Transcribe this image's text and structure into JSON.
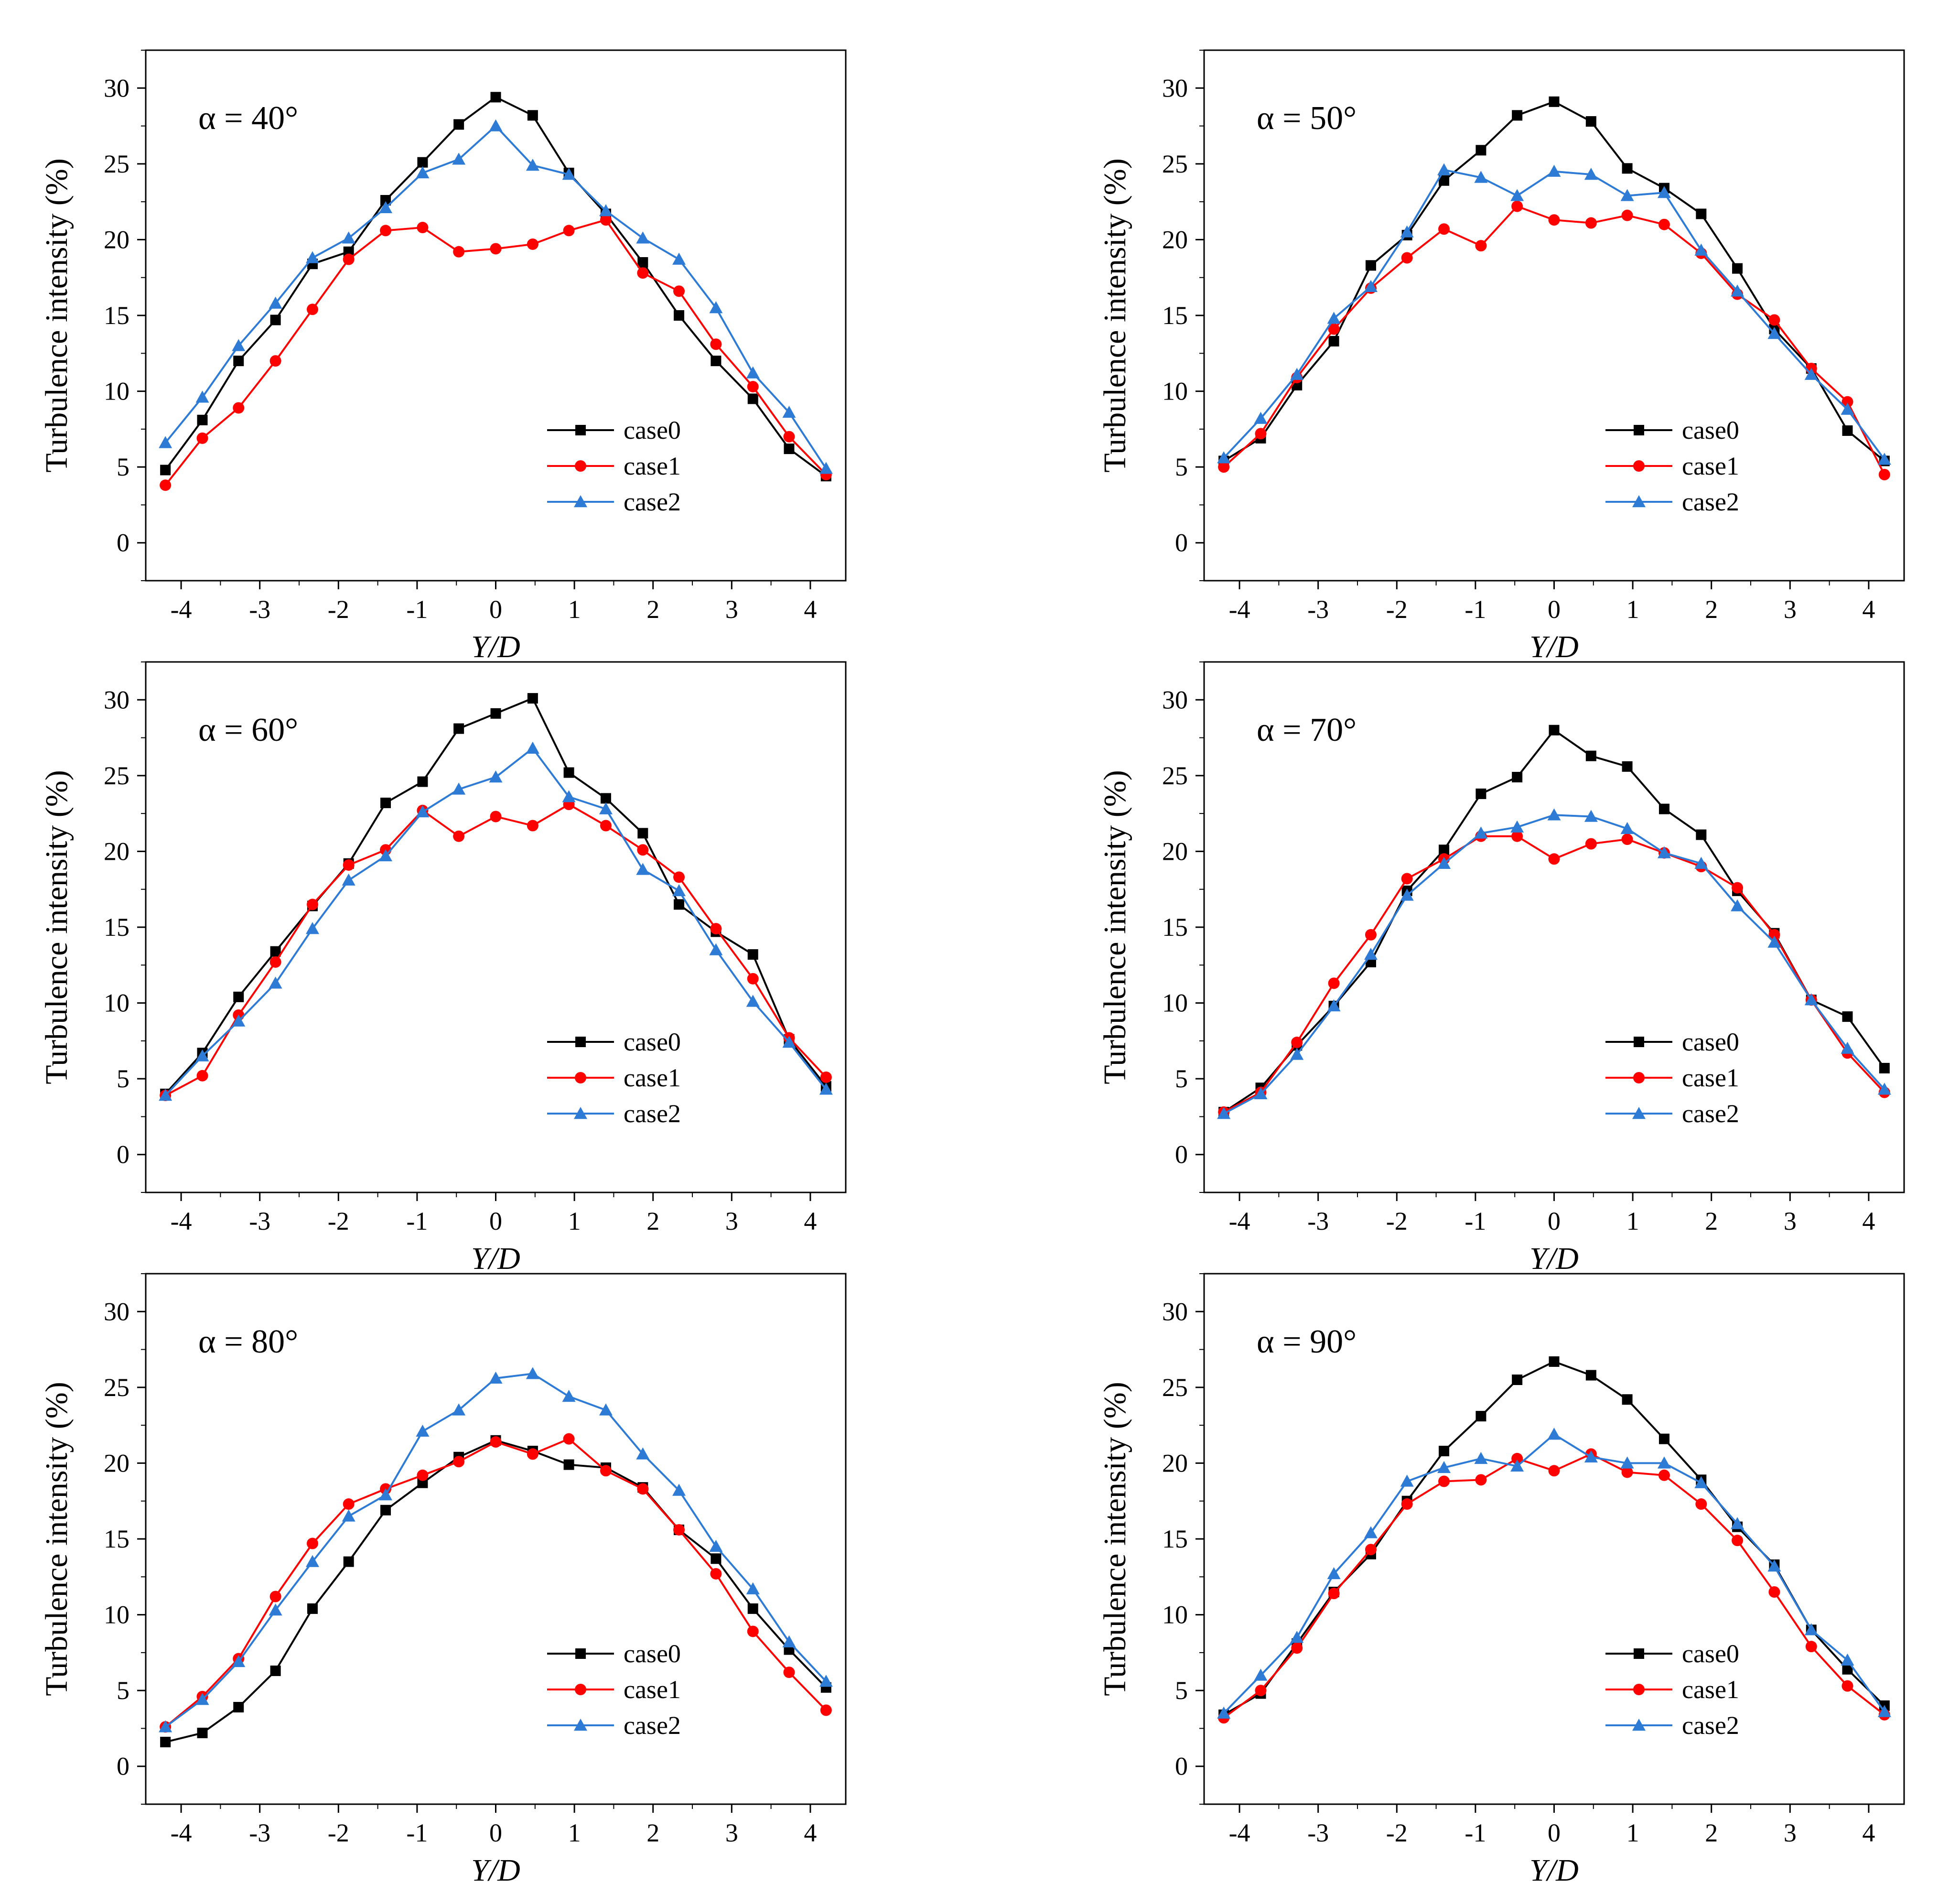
{
  "figure": {
    "ylabel": "Turbulence intensity (%)",
    "xlabel": "Y/D",
    "x_ticks": [
      "-4",
      "-3",
      "-2",
      "-1",
      "0",
      "1",
      "2",
      "3",
      "4"
    ],
    "y_ticks": [
      "0",
      "5",
      "10",
      "15",
      "20",
      "25",
      "30"
    ],
    "legend": [
      "case0",
      "case1",
      "case2"
    ],
    "colors": {
      "case0": "#000000",
      "case1": "#ff0000",
      "case2": "#2e7bd6"
    },
    "markers": {
      "case0": "square",
      "case1": "circle",
      "case2": "triangle"
    }
  },
  "chart_data": [
    {
      "type": "line",
      "title": "α = 40°",
      "xlabel": "Y/D",
      "ylabel": "Turbulence intensity (%)",
      "xlim": [
        -4.45,
        4.45
      ],
      "ylim": [
        -2.5,
        32.5
      ],
      "x": [
        -4.2,
        -3.73,
        -3.27,
        -2.8,
        -2.33,
        -1.87,
        -1.4,
        -0.93,
        -0.47,
        0,
        0.47,
        0.93,
        1.4,
        1.87,
        2.33,
        2.8,
        3.27,
        3.73,
        4.2
      ],
      "series": [
        {
          "name": "case0",
          "values": [
            4.8,
            8.1,
            12.0,
            14.7,
            18.4,
            19.2,
            22.6,
            25.1,
            27.6,
            29.4,
            28.2,
            24.4,
            21.7,
            18.5,
            15.0,
            12.0,
            9.5,
            6.2,
            4.4
          ]
        },
        {
          "name": "case1",
          "values": [
            3.8,
            6.9,
            8.9,
            12.0,
            15.4,
            18.7,
            20.6,
            20.8,
            19.2,
            19.4,
            19.7,
            20.6,
            21.3,
            17.8,
            16.6,
            13.1,
            10.3,
            7.0,
            4.5
          ]
        },
        {
          "name": "case2",
          "values": [
            6.6,
            9.6,
            13.0,
            15.8,
            18.8,
            20.1,
            22.1,
            24.4,
            25.3,
            27.5,
            24.9,
            24.3,
            21.9,
            20.1,
            18.7,
            15.5,
            11.2,
            8.6,
            4.9
          ]
        }
      ]
    },
    {
      "type": "line",
      "title": "α = 50°",
      "xlabel": "Y/D",
      "ylabel": "Turbulence intensity (%)",
      "xlim": [
        -4.45,
        4.45
      ],
      "ylim": [
        -2.5,
        32.5
      ],
      "x": [
        -4.2,
        -3.73,
        -3.27,
        -2.8,
        -2.33,
        -1.87,
        -1.4,
        -0.93,
        -0.47,
        0,
        0.47,
        0.93,
        1.4,
        1.87,
        2.33,
        2.8,
        3.27,
        3.73,
        4.2
      ],
      "series": [
        {
          "name": "case0",
          "values": [
            5.4,
            6.9,
            10.4,
            13.3,
            18.3,
            20.3,
            23.9,
            25.9,
            28.2,
            29.1,
            27.8,
            24.7,
            23.4,
            21.7,
            18.1,
            14.1,
            11.5,
            7.4,
            5.4
          ]
        },
        {
          "name": "case1",
          "values": [
            5.0,
            7.2,
            10.9,
            14.1,
            16.8,
            18.8,
            20.7,
            19.6,
            22.2,
            21.3,
            21.1,
            21.6,
            21.0,
            19.1,
            16.4,
            14.7,
            11.5,
            9.3,
            4.5
          ]
        },
        {
          "name": "case2",
          "values": [
            5.6,
            8.2,
            11.1,
            14.8,
            16.9,
            20.5,
            24.6,
            24.1,
            22.9,
            24.5,
            24.3,
            22.9,
            23.1,
            19.3,
            16.6,
            13.8,
            11.1,
            8.8,
            5.5
          ]
        }
      ]
    },
    {
      "type": "line",
      "title": "α = 60°",
      "xlabel": "Y/D",
      "ylabel": "Turbulence intensity (%)",
      "xlim": [
        -4.45,
        4.45
      ],
      "ylim": [
        -2.5,
        32.5
      ],
      "x": [
        -4.2,
        -3.73,
        -3.27,
        -2.8,
        -2.33,
        -1.87,
        -1.4,
        -0.93,
        -0.47,
        0,
        0.47,
        0.93,
        1.4,
        1.87,
        2.33,
        2.8,
        3.27,
        3.73,
        4.2
      ],
      "series": [
        {
          "name": "case0",
          "values": [
            4.0,
            6.7,
            10.4,
            13.4,
            16.4,
            19.2,
            23.2,
            24.6,
            28.1,
            29.1,
            30.1,
            25.2,
            23.5,
            21.2,
            16.5,
            14.7,
            13.2,
            7.6,
            4.5
          ]
        },
        {
          "name": "case1",
          "values": [
            3.9,
            5.2,
            9.2,
            12.7,
            16.5,
            19.1,
            20.1,
            22.7,
            21.0,
            22.3,
            21.7,
            23.1,
            21.7,
            20.1,
            18.3,
            14.9,
            11.6,
            7.7,
            5.1
          ]
        },
        {
          "name": "case2",
          "values": [
            3.9,
            6.5,
            8.8,
            11.3,
            14.9,
            18.1,
            19.7,
            22.6,
            24.1,
            24.9,
            26.8,
            23.6,
            22.8,
            18.8,
            17.4,
            13.5,
            10.1,
            7.4,
            4.3
          ]
        }
      ]
    },
    {
      "type": "line",
      "title": "α = 70°",
      "xlabel": "Y/D",
      "ylabel": "Turbulence intensity (%)",
      "xlim": [
        -4.45,
        4.45
      ],
      "ylim": [
        -2.5,
        32.5
      ],
      "x": [
        -4.2,
        -3.73,
        -3.27,
        -2.8,
        -2.33,
        -1.87,
        -1.4,
        -0.93,
        -0.47,
        0,
        0.47,
        0.93,
        1.4,
        1.87,
        2.33,
        2.8,
        3.27,
        3.73,
        4.2
      ],
      "series": [
        {
          "name": "case0",
          "values": [
            2.8,
            4.4,
            7.2,
            9.8,
            12.7,
            17.4,
            20.1,
            23.8,
            24.9,
            28.0,
            26.3,
            25.6,
            22.8,
            21.1,
            17.4,
            14.6,
            10.2,
            9.1,
            5.7
          ]
        },
        {
          "name": "case1",
          "values": [
            2.8,
            4.1,
            7.4,
            11.3,
            14.5,
            18.2,
            19.5,
            21.0,
            21.0,
            19.5,
            20.5,
            20.8,
            19.9,
            19.0,
            17.6,
            14.5,
            10.2,
            6.7,
            4.1
          ]
        },
        {
          "name": "case2",
          "values": [
            2.7,
            4.0,
            6.6,
            9.8,
            13.2,
            17.1,
            19.2,
            21.2,
            21.6,
            22.4,
            22.3,
            21.5,
            19.9,
            19.2,
            16.4,
            14.0,
            10.2,
            7.0,
            4.3
          ]
        }
      ]
    },
    {
      "type": "line",
      "title": "α = 80°",
      "xlabel": "Y/D",
      "ylabel": "Turbulence intensity (%)",
      "xlim": [
        -4.45,
        4.45
      ],
      "ylim": [
        -2.5,
        32.5
      ],
      "x": [
        -4.2,
        -3.73,
        -3.27,
        -2.8,
        -2.33,
        -1.87,
        -1.4,
        -0.93,
        -0.47,
        0,
        0.47,
        0.93,
        1.4,
        1.87,
        2.33,
        2.8,
        3.27,
        3.73,
        4.2
      ],
      "series": [
        {
          "name": "case0",
          "values": [
            1.6,
            2.2,
            3.9,
            6.3,
            10.4,
            13.5,
            16.9,
            18.7,
            20.4,
            21.5,
            20.8,
            19.9,
            19.7,
            18.4,
            15.6,
            13.7,
            10.4,
            7.7,
            5.2
          ]
        },
        {
          "name": "case1",
          "values": [
            2.6,
            4.6,
            7.1,
            11.2,
            14.7,
            17.3,
            18.3,
            19.2,
            20.1,
            21.4,
            20.6,
            21.6,
            19.5,
            18.3,
            15.6,
            12.7,
            8.9,
            6.2,
            3.7
          ]
        },
        {
          "name": "case2",
          "values": [
            2.6,
            4.4,
            6.9,
            10.3,
            13.5,
            16.5,
            17.9,
            22.1,
            23.5,
            25.6,
            25.9,
            24.4,
            23.5,
            20.6,
            18.2,
            14.5,
            11.7,
            8.2,
            5.6
          ]
        }
      ]
    },
    {
      "type": "line",
      "title": "α = 90°",
      "xlabel": "Y/D",
      "ylabel": "Turbulence intensity (%)",
      "xlim": [
        -4.45,
        4.45
      ],
      "ylim": [
        -2.5,
        32.5
      ],
      "x": [
        -4.2,
        -3.73,
        -3.27,
        -2.8,
        -2.33,
        -1.87,
        -1.4,
        -0.93,
        -0.47,
        0,
        0.47,
        0.93,
        1.4,
        1.87,
        2.33,
        2.8,
        3.27,
        3.73,
        4.2
      ],
      "series": [
        {
          "name": "case0",
          "values": [
            3.4,
            4.8,
            8.1,
            11.5,
            14.0,
            17.5,
            20.8,
            23.1,
            25.5,
            26.7,
            25.8,
            24.2,
            21.6,
            18.9,
            15.8,
            13.3,
            9.0,
            6.4,
            4.0
          ]
        },
        {
          "name": "case1",
          "values": [
            3.2,
            5.0,
            7.8,
            11.4,
            14.3,
            17.3,
            18.8,
            18.9,
            20.3,
            19.5,
            20.6,
            19.4,
            19.2,
            17.3,
            14.9,
            11.5,
            7.9,
            5.3,
            3.4
          ]
        },
        {
          "name": "case2",
          "values": [
            3.5,
            6.0,
            8.5,
            12.7,
            15.4,
            18.8,
            19.7,
            20.3,
            19.8,
            21.9,
            20.4,
            20.0,
            20.0,
            18.7,
            16.0,
            13.2,
            9.0,
            7.0,
            3.6
          ]
        }
      ]
    }
  ]
}
